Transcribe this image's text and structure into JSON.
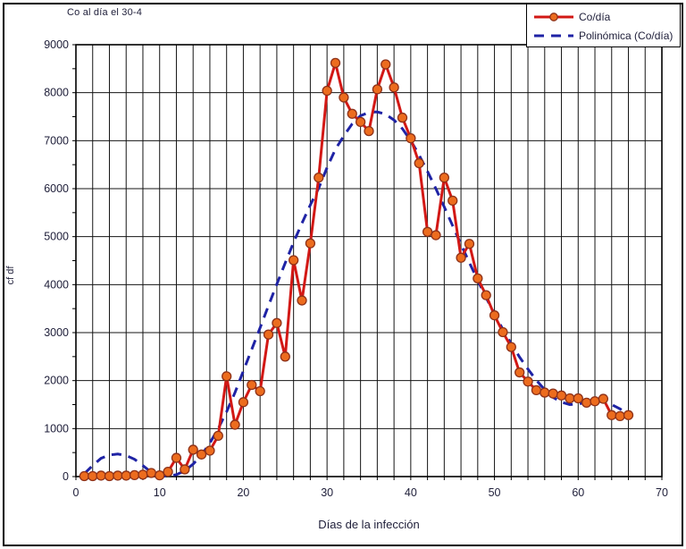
{
  "title": "Co al día el 30-4",
  "legend": {
    "series1": "Co/día",
    "series2": "Polinómica (Co/día)"
  },
  "axes": {
    "x_label": "Días de la infección",
    "y_label": "cf df",
    "x_ticks": [
      0,
      10,
      20,
      30,
      40,
      50,
      60,
      70
    ],
    "y_ticks": [
      0,
      1000,
      2000,
      3000,
      4000,
      5000,
      6000,
      7000,
      8000,
      9000
    ]
  },
  "chart_data": {
    "type": "line",
    "title": "Co al día el 30-4",
    "xlabel": "Días de la infección",
    "ylabel": "cf df",
    "xlim": [
      0,
      70
    ],
    "ylim": [
      0,
      9000
    ],
    "grid": true,
    "grid_x_step": 2,
    "grid_y_step": 1000,
    "minor_y_tick_step": 500,
    "legend_position": "top-right",
    "x": [
      1,
      2,
      3,
      4,
      5,
      6,
      7,
      8,
      9,
      10,
      11,
      12,
      13,
      14,
      15,
      16,
      17,
      18,
      19,
      20,
      21,
      22,
      23,
      24,
      25,
      26,
      27,
      28,
      29,
      30,
      31,
      32,
      33,
      34,
      35,
      36,
      37,
      38,
      39,
      40,
      41,
      42,
      43,
      44,
      45,
      46,
      47,
      48,
      49,
      50,
      51,
      52,
      53,
      54,
      55,
      56,
      57,
      58,
      59,
      60,
      61,
      62,
      63,
      64,
      65,
      66
    ],
    "series": [
      {
        "name": "Co/día",
        "style": "solid-with-markers",
        "color": "#d21815",
        "marker_fill": "#ec6c1e",
        "marker_stroke": "#8e3118",
        "values": [
          10,
          10,
          20,
          10,
          20,
          20,
          30,
          40,
          75,
          25,
          100,
          390,
          150,
          560,
          460,
          540,
          850,
          2090,
          1080,
          1550,
          1910,
          1780,
          2960,
          3200,
          2500,
          4510,
          3670,
          4860,
          6230,
          8040,
          8620,
          7900,
          7560,
          7390,
          7200,
          8070,
          8590,
          8110,
          7480,
          7050,
          6530,
          5100,
          5030,
          6230,
          5750,
          4560,
          4850,
          4130,
          3780,
          3360,
          3010,
          2700,
          2170,
          1980,
          1800,
          1750,
          1730,
          1690,
          1630,
          1630,
          1540,
          1570,
          1620,
          1280,
          1260,
          1280
        ]
      },
      {
        "name": "Polinómica (Co/día)",
        "style": "dashed",
        "color": "#1f23a5",
        "values": [
          60,
          230,
          380,
          450,
          470,
          440,
          360,
          230,
          90,
          20,
          10,
          40,
          120,
          260,
          450,
          700,
          1000,
          1350,
          1750,
          2200,
          2650,
          3100,
          3560,
          4010,
          4450,
          4880,
          5280,
          5660,
          6010,
          6440,
          6820,
          7100,
          7350,
          7520,
          7590,
          7600,
          7550,
          7430,
          7250,
          7000,
          6700,
          6360,
          6000,
          5620,
          5230,
          4840,
          4460,
          4090,
          3730,
          3390,
          3070,
          2770,
          2490,
          2240,
          2010,
          1810,
          1650,
          1550,
          1500,
          1510,
          1550,
          1570,
          1560,
          1500,
          1410,
          1300
        ]
      }
    ]
  }
}
